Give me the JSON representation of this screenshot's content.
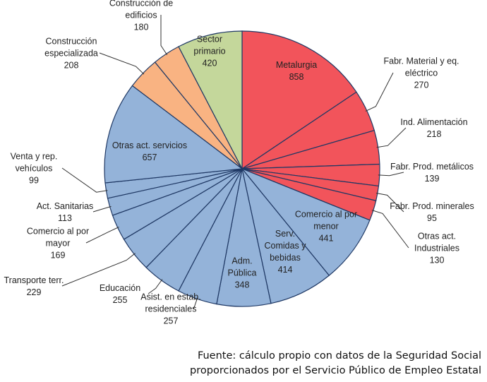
{
  "chart_data": {
    "type": "pie",
    "title": "",
    "slices": [
      {
        "label": [
          "Metalurgia"
        ],
        "value": 858,
        "value_text": "858",
        "color": "#f2545b"
      },
      {
        "label": [
          "Fabr. Material y eq.",
          "eléctrico"
        ],
        "value": 270,
        "value_text": "270",
        "color": "#f2545b"
      },
      {
        "label": [
          "Ind. Alimentación"
        ],
        "value": 218,
        "value_text": "218",
        "color": "#f2545b"
      },
      {
        "label": [
          "Fabr. Prod. metálicos"
        ],
        "value": 139,
        "value_text": "139",
        "color": "#f2545b"
      },
      {
        "label": [
          "Fabr. Prod. minerales"
        ],
        "value": 95,
        "value_text": "95",
        "color": "#f2545b"
      },
      {
        "label": [
          "Otras act.",
          "Industriales"
        ],
        "value": 130,
        "value_text": "130",
        "color": "#f2545b"
      },
      {
        "label": [
          "Comercio al por",
          "menor"
        ],
        "value": 441,
        "value_text": "441",
        "color": "#94b3d9"
      },
      {
        "label": [
          "Serv.",
          "Comidas y",
          "bebidas"
        ],
        "value": 414,
        "value_text": "414",
        "color": "#94b3d9"
      },
      {
        "label": [
          "Adm.",
          "Pública"
        ],
        "value": 348,
        "value_text": "348",
        "color": "#94b3d9"
      },
      {
        "label": [
          "Asist. en estab.",
          "residenciales"
        ],
        "value": 257,
        "value_text": "257",
        "color": "#94b3d9"
      },
      {
        "label": [
          "Educación"
        ],
        "value": 255,
        "value_text": "255",
        "color": "#94b3d9"
      },
      {
        "label": [
          "Transporte terr."
        ],
        "value": 229,
        "value_text": "229",
        "color": "#94b3d9"
      },
      {
        "label": [
          "Comercio al por",
          "mayor"
        ],
        "value": 169,
        "value_text": "169",
        "color": "#94b3d9"
      },
      {
        "label": [
          "Act. Sanitarias"
        ],
        "value": 113,
        "value_text": "113",
        "color": "#94b3d9"
      },
      {
        "label": [
          "Venta y rep.",
          "vehículos"
        ],
        "value": 99,
        "value_text": "99",
        "color": "#94b3d9"
      },
      {
        "label": [
          "Otras act. servicios"
        ],
        "value": 657,
        "value_text": "657",
        "color": "#94b3d9"
      },
      {
        "label": [
          "Construcción",
          "especializada"
        ],
        "value": 208,
        "value_text": "208",
        "color": "#f9b382"
      },
      {
        "label": [
          "Construcción de",
          "edificios"
        ],
        "value": 180,
        "value_text": "180",
        "color": "#f9b382"
      },
      {
        "label": [
          "Sector",
          "primario"
        ],
        "value": 420,
        "value_text": "420",
        "color": "#c4d79b"
      }
    ],
    "legend": "none",
    "start": "12 o'clock, clockwise"
  },
  "source": {
    "line1": "Fuente: cálculo propio con datos de la Seguridad Social",
    "line2": "proporcionados por el Servicio Público de Empleo Estatal"
  }
}
